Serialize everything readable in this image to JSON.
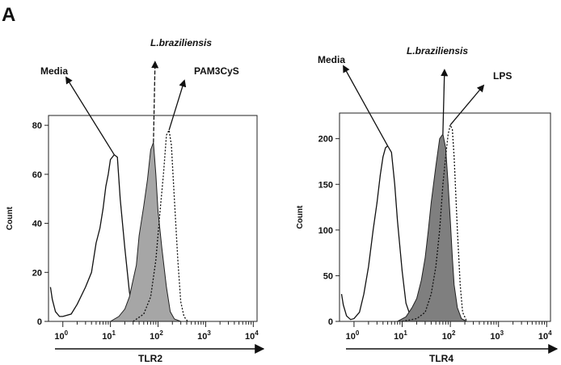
{
  "panel_label": "A",
  "chart_data": [
    {
      "type": "area",
      "panel": "left",
      "xlabel": "TLR2",
      "ylabel": "Count",
      "x_scale": "log",
      "xlim": [
        0.5,
        12000
      ],
      "ylim": [
        0,
        84
      ],
      "x_ticks": [
        {
          "value": 1,
          "base": "10",
          "exp": "0"
        },
        {
          "value": 10,
          "base": "10",
          "exp": "1"
        },
        {
          "value": 100,
          "base": "10",
          "exp": "2"
        },
        {
          "value": 1000,
          "base": "10",
          "exp": "3"
        },
        {
          "value": 10000,
          "base": "10",
          "exp": "4"
        }
      ],
      "y_ticks": [
        0,
        20,
        40,
        60,
        80
      ],
      "series": [
        {
          "name": "Media",
          "style": "solid-line",
          "color": "#111111",
          "points": [
            [
              0.55,
              14
            ],
            [
              0.6,
              9
            ],
            [
              0.7,
              4
            ],
            [
              0.85,
              2
            ],
            [
              1.0,
              2
            ],
            [
              1.5,
              3
            ],
            [
              2,
              7
            ],
            [
              3,
              14
            ],
            [
              4,
              20
            ],
            [
              5,
              32
            ],
            [
              6,
              38
            ],
            [
              7,
              46
            ],
            [
              8,
              55
            ],
            [
              9,
              60
            ],
            [
              10,
              66
            ],
            [
              12,
              68
            ],
            [
              14,
              67
            ],
            [
              16,
              50
            ],
            [
              20,
              30
            ],
            [
              25,
              12
            ],
            [
              30,
              4
            ],
            [
              40,
              1
            ],
            [
              60,
              0
            ]
          ]
        },
        {
          "name": "L.braziliensis",
          "style": "filled",
          "color": "#a6a6a6",
          "points": [
            [
              10,
              0
            ],
            [
              15,
              2
            ],
            [
              20,
              5
            ],
            [
              25,
              10
            ],
            [
              30,
              17
            ],
            [
              35,
              23
            ],
            [
              40,
              35
            ],
            [
              50,
              47
            ],
            [
              60,
              58
            ],
            [
              70,
              70
            ],
            [
              80,
              73
            ],
            [
              90,
              60
            ],
            [
              100,
              45
            ],
            [
              120,
              30
            ],
            [
              150,
              14
            ],
            [
              180,
              4
            ],
            [
              220,
              1
            ],
            [
              300,
              0
            ]
          ]
        },
        {
          "name": "PAM3CyS",
          "style": "dotted-line",
          "color": "#111111",
          "points": [
            [
              30,
              0
            ],
            [
              50,
              3
            ],
            [
              70,
              10
            ],
            [
              90,
              25
            ],
            [
              110,
              45
            ],
            [
              130,
              60
            ],
            [
              150,
              76
            ],
            [
              170,
              78
            ],
            [
              190,
              72
            ],
            [
              220,
              50
            ],
            [
              260,
              25
            ],
            [
              300,
              8
            ],
            [
              350,
              2
            ],
            [
              420,
              0
            ]
          ]
        }
      ],
      "annotations": [
        {
          "text": "Media",
          "bold": true,
          "italic": false,
          "points_to": [
            12,
            68
          ]
        },
        {
          "text": "L.braziliensis",
          "bold": true,
          "italic": true,
          "points_to": [
            80,
            73
          ]
        },
        {
          "text": "PAM3CyS",
          "bold": true,
          "italic": false,
          "points_to": [
            170,
            78
          ]
        }
      ]
    },
    {
      "type": "area",
      "panel": "right",
      "xlabel": "TLR4",
      "ylabel": "Count",
      "x_scale": "log",
      "xlim": [
        0.5,
        12000
      ],
      "ylim": [
        0,
        228
      ],
      "x_ticks": [
        {
          "value": 1,
          "base": "10",
          "exp": "0"
        },
        {
          "value": 10,
          "base": "10",
          "exp": "1"
        },
        {
          "value": 100,
          "base": "10",
          "exp": "2"
        },
        {
          "value": 1000,
          "base": "10",
          "exp": "3"
        },
        {
          "value": 10000,
          "base": "10",
          "exp": "4"
        }
      ],
      "y_ticks": [
        0,
        50,
        100,
        150,
        200
      ],
      "series": [
        {
          "name": "Media",
          "style": "solid-line",
          "color": "#111111",
          "points": [
            [
              0.55,
              30
            ],
            [
              0.6,
              18
            ],
            [
              0.7,
              6
            ],
            [
              0.85,
              2
            ],
            [
              1.0,
              3
            ],
            [
              1.3,
              10
            ],
            [
              1.6,
              30
            ],
            [
              2,
              60
            ],
            [
              2.5,
              100
            ],
            [
              3,
              130
            ],
            [
              3.5,
              160
            ],
            [
              4,
              180
            ],
            [
              4.5,
              190
            ],
            [
              5,
              192
            ],
            [
              6,
              185
            ],
            [
              7,
              150
            ],
            [
              8,
              110
            ],
            [
              10,
              55
            ],
            [
              12,
              20
            ],
            [
              15,
              5
            ],
            [
              20,
              1
            ],
            [
              30,
              0
            ]
          ]
        },
        {
          "name": "L.braziliensis",
          "style": "filled",
          "color": "#7f7f7f",
          "points": [
            [
              8,
              0
            ],
            [
              12,
              5
            ],
            [
              16,
              15
            ],
            [
              20,
              25
            ],
            [
              25,
              45
            ],
            [
              30,
              70
            ],
            [
              35,
              100
            ],
            [
              40,
              130
            ],
            [
              50,
              170
            ],
            [
              60,
              200
            ],
            [
              70,
              205
            ],
            [
              80,
              190
            ],
            [
              90,
              150
            ],
            [
              100,
              110
            ],
            [
              110,
              70
            ],
            [
              120,
              40
            ],
            [
              140,
              15
            ],
            [
              170,
              3
            ],
            [
              220,
              0
            ]
          ]
        },
        {
          "name": "LPS",
          "style": "dotted-line",
          "color": "#111111",
          "points": [
            [
              10,
              0
            ],
            [
              20,
              3
            ],
            [
              30,
              10
            ],
            [
              40,
              30
            ],
            [
              50,
              60
            ],
            [
              60,
              100
            ],
            [
              70,
              150
            ],
            [
              80,
              180
            ],
            [
              90,
              205
            ],
            [
              100,
              215
            ],
            [
              110,
              210
            ],
            [
              120,
              180
            ],
            [
              140,
              100
            ],
            [
              160,
              40
            ],
            [
              180,
              10
            ],
            [
              220,
              0
            ]
          ]
        }
      ],
      "annotations": [
        {
          "text": "Media",
          "bold": true,
          "italic": false,
          "points_to": [
            5,
            192
          ]
        },
        {
          "text": "L.braziliensis",
          "bold": true,
          "italic": true,
          "points_to": [
            70,
            205
          ]
        },
        {
          "text": "LPS",
          "bold": true,
          "italic": false,
          "points_to": [
            100,
            215
          ]
        }
      ]
    }
  ]
}
